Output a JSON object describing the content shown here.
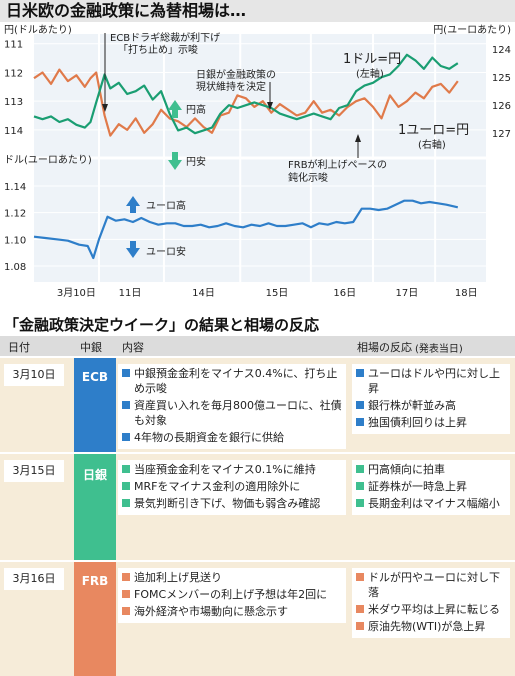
{
  "title": "日米欧の金融政策に為替相場は…",
  "chart_data": {
    "type": "line",
    "top_panel": {
      "left_axis_unit": "円(ドルあたり)",
      "right_axis_unit": "円(ユーロあたり)",
      "left_ticks": [
        "111",
        "112",
        "113",
        "114"
      ],
      "right_ticks": [
        "124",
        "125",
        "126",
        "127"
      ],
      "left_ylim": [
        110.8,
        114.7
      ],
      "right_ylim": [
        123.6,
        127.6
      ],
      "series": [
        {
          "name": "1ドル=円",
          "axis": "左軸",
          "color": "#e07a4a",
          "x": [
            0,
            0.3,
            0.6,
            0.9,
            1.2,
            1.5,
            1.8,
            2.0,
            2.2,
            2.5,
            2.7,
            3.0,
            3.3,
            3.6,
            3.9,
            4.2,
            4.5,
            4.8,
            5.1,
            5.4,
            5.7,
            6.0,
            6.3,
            6.6,
            6.9,
            7.2,
            7.5,
            7.8,
            8.1,
            8.4,
            8.7,
            9.0,
            9.3,
            9.6,
            9.9,
            10.2,
            10.5,
            10.8,
            11.1,
            11.4,
            11.7,
            12.0,
            12.3,
            12.6,
            12.9,
            13.2,
            13.5,
            13.8,
            14.1,
            14.4,
            14.7,
            15.0
          ],
          "values": [
            112.2,
            112.0,
            112.4,
            111.9,
            112.3,
            112.1,
            112.5,
            112.2,
            112.0,
            113.5,
            114.2,
            113.8,
            114.0,
            113.6,
            114.1,
            113.8,
            113.3,
            113.6,
            113.7,
            113.9,
            113.6,
            113.9,
            114.1,
            113.5,
            113.4,
            112.8,
            112.9,
            113.2,
            113.0,
            113.4,
            113.1,
            113.3,
            113.5,
            113.4,
            113.0,
            113.4,
            113.3,
            113.5,
            113.2,
            113.0,
            112.9,
            113.2,
            113.6,
            112.8,
            113.2,
            113.0,
            112.7,
            112.9,
            112.5,
            112.4,
            112.7,
            112.3
          ]
        },
        {
          "name": "1ユーロ=円",
          "axis": "右軸",
          "color": "#1a9e72",
          "x": [
            0,
            0.3,
            0.6,
            0.9,
            1.2,
            1.5,
            1.8,
            2.0,
            2.2,
            2.5,
            2.7,
            3.0,
            3.3,
            3.6,
            3.9,
            4.2,
            4.5,
            4.8,
            5.1,
            5.4,
            5.7,
            6.0,
            6.3,
            6.6,
            6.9,
            7.2,
            7.5,
            7.8,
            8.1,
            8.4,
            8.7,
            9.0,
            9.3,
            9.6,
            9.9,
            10.2,
            10.5,
            10.8,
            11.1,
            11.4,
            11.7,
            12.0,
            12.3,
            12.6,
            12.9,
            13.2,
            13.5,
            13.8,
            14.1,
            14.4,
            14.7,
            15.0
          ],
          "values": [
            126.4,
            126.5,
            126.4,
            126.6,
            126.5,
            126.7,
            126.8,
            126.6,
            125.9,
            124.9,
            125.4,
            125.2,
            125.6,
            125.5,
            125.3,
            125.8,
            125.5,
            126.3,
            126.9,
            126.8,
            127.0,
            126.9,
            126.8,
            126.3,
            126.0,
            126.1,
            126.0,
            125.9,
            126.0,
            126.1,
            126.3,
            126.4,
            126.5,
            126.4,
            126.3,
            126.4,
            126.5,
            126.1,
            126.0,
            125.5,
            125.3,
            125.2,
            125.0,
            124.9,
            124.6,
            124.2,
            124.4,
            124.7,
            124.3,
            124.6,
            124.7,
            124.5
          ]
        }
      ]
    },
    "bottom_panel": {
      "axis_unit": "ドル(ユーロあたり)",
      "ticks": [
        "1.14",
        "1.12",
        "1.10",
        "1.08"
      ],
      "ylim": [
        1.077,
        1.146
      ],
      "series": [
        {
          "color": "#2e7ec9",
          "x": [
            0,
            0.4,
            0.8,
            1.2,
            1.6,
            1.9,
            2.1,
            2.3,
            2.6,
            2.9,
            3.2,
            3.5,
            3.8,
            4.1,
            4.4,
            4.7,
            5.0,
            5.3,
            5.6,
            5.9,
            6.2,
            6.5,
            6.8,
            7.1,
            7.4,
            7.7,
            8.0,
            8.3,
            8.6,
            8.9,
            9.2,
            9.5,
            9.8,
            10.1,
            10.4,
            10.7,
            11.0,
            11.3,
            11.6,
            11.9,
            12.2,
            12.5,
            12.8,
            13.1,
            13.4,
            13.7,
            14.0,
            14.3,
            14.6,
            15.0
          ],
          "values": [
            1.102,
            1.101,
            1.1,
            1.099,
            1.096,
            1.095,
            1.086,
            1.1,
            1.117,
            1.114,
            1.115,
            1.113,
            1.116,
            1.113,
            1.111,
            1.112,
            1.112,
            1.11,
            1.11,
            1.111,
            1.109,
            1.11,
            1.112,
            1.11,
            1.109,
            1.111,
            1.11,
            1.112,
            1.11,
            1.11,
            1.111,
            1.112,
            1.109,
            1.112,
            1.111,
            1.113,
            1.112,
            1.113,
            1.123,
            1.123,
            1.122,
            1.123,
            1.126,
            1.129,
            1.129,
            1.127,
            1.128,
            1.127,
            1.126,
            1.124
          ]
        }
      ]
    },
    "x_ticks": [
      {
        "label": "3月10日",
        "x": 1.5
      },
      {
        "label": "11日",
        "x": 3.4
      },
      {
        "label": "14日",
        "x": 6.0
      },
      {
        "label": "15日",
        "x": 8.6
      },
      {
        "label": "16日",
        "x": 11.0
      },
      {
        "label": "17日",
        "x": 13.2
      },
      {
        "label": "18日",
        "x": 15.3
      }
    ],
    "x_range": [
      0,
      16
    ],
    "day_boundaries": [
      2.3,
      4.6,
      7.3,
      9.8,
      12.0,
      14.2
    ]
  },
  "annotations": {
    "ecb": "ECBドラギ総裁が利下げ",
    "ecb2": "「打ち止め」示唆",
    "boj": "日銀が金融政策の",
    "boj2": "現状維持を決定",
    "yen_up": "円高",
    "yen_down": "円安",
    "frb": "FRBが利上げペースの",
    "frb2": "鈍化示唆",
    "usd_label": "1ドル=円",
    "usd_axis": "(左軸)",
    "eur_label": "1ユーロ=円",
    "eur_axis": "(右軸)",
    "euro_up": "ユーロ高",
    "euro_down": "ユーロ安"
  },
  "table": {
    "title": "「金融政策決定ウイーク」の結果と相場の反応",
    "headers": {
      "date": "日付",
      "bank": "中銀",
      "content": "内容",
      "reaction": "相場の反応",
      "reaction_note": "(発表当日)"
    },
    "rows": [
      {
        "date": "3月10日",
        "bank": "ECB",
        "bank_color": "#2e7ec9",
        "content": [
          "中銀預金金利をマイナス0.4%に、打ち止め示唆",
          "資産買い入れを毎月800億ユーロに、社債も対象",
          "4年物の長期資金を銀行に供給"
        ],
        "reaction": [
          "ユーロはドルや円に対し上昇",
          "銀行株が軒並み高",
          "独国債利回りは上昇"
        ]
      },
      {
        "date": "3月15日",
        "bank": "日銀",
        "bank_color": "#3fbf8f",
        "content": [
          "当座預金金利をマイナス0.1%に維持",
          "MRFをマイナス金利の適用除外に",
          "景気判断引き下げ、物価も弱含み確認"
        ],
        "reaction": [
          "円高傾向に拍車",
          "証券株が一時急上昇",
          "長期金利はマイナス幅縮小"
        ]
      },
      {
        "date": "3月16日",
        "bank": "FRB",
        "bank_color": "#e88860",
        "content": [
          "追加利上げ見送り",
          "FOMCメンバーの利上げ予想は年2回に",
          "海外経済や市場動向に懸念示す"
        ],
        "reaction": [
          "ドルが円やユーロに対し下落",
          "米ダウ平均は上昇に転じる",
          "原油先物(WTI)が急上昇"
        ]
      }
    ]
  }
}
